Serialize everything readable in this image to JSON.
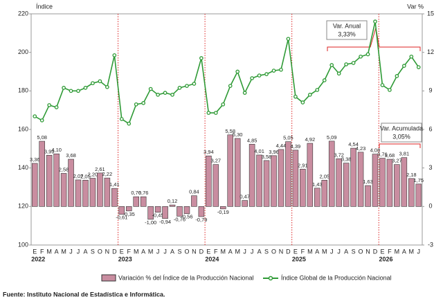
{
  "chart_data": {
    "type": "combo",
    "y_label": "Índice",
    "y2_label": "Var %",
    "categories": [
      "E",
      "F",
      "M",
      "A",
      "M",
      "J",
      "J",
      "A",
      "S",
      "O",
      "N",
      "D",
      "E",
      "F",
      "M",
      "A",
      "M",
      "J",
      "J",
      "A",
      "S",
      "O",
      "N",
      "D",
      "E",
      "F",
      "M",
      "A",
      "M",
      "J",
      "J",
      "A",
      "S",
      "O",
      "N",
      "D",
      "E",
      "F",
      "M",
      "A",
      "M",
      "J",
      "J",
      "A",
      "S",
      "O",
      "N",
      "D",
      "E",
      "F",
      "M",
      "A",
      "M",
      "J"
    ],
    "years": [
      "2022",
      "2023",
      "2024",
      "2025",
      "2026"
    ],
    "ylim": [
      100,
      220
    ],
    "yticks": [
      100,
      120,
      140,
      160,
      180,
      200,
      220
    ],
    "y2lim": [
      -3,
      15
    ],
    "y2ticks": [
      -3,
      0,
      3,
      6,
      9,
      12,
      15
    ],
    "series": [
      {
        "name": "Variación % del Índice de la Producción Nacional",
        "type": "bar",
        "axis": "y2",
        "color": "#c98da0",
        "values": [
          3.36,
          5.08,
          3.99,
          4.1,
          2.58,
          3.68,
          2.07,
          2.05,
          2.2,
          2.61,
          2.22,
          1.41,
          -0.61,
          -0.35,
          0.76,
          0.76,
          -1.0,
          -0.45,
          -0.94,
          0.12,
          -0.76,
          -0.56,
          0.84,
          -0.79,
          3.94,
          3.27,
          -0.19,
          5.58,
          5.3,
          0.47,
          4.85,
          4.01,
          3.58,
          3.96,
          4.44,
          5.05,
          4.39,
          2.91,
          4.92,
          1.43,
          2.05,
          5.09,
          3.72,
          3.38,
          4.54,
          4.23,
          1.63,
          4.08,
          3.76,
          3.68,
          3.27,
          3.81,
          2.18,
          1.75
        ],
        "value_labels": [
          "3,36",
          "5,08",
          "3,99",
          "4,10",
          "2,58",
          "3,68",
          "2,07",
          "2,05",
          "2,20",
          "2,61",
          "2,22",
          "1,41",
          "-0,61",
          "-0,35",
          "0,76",
          "0,76",
          "-1,00",
          "-0,45",
          "-0,94",
          "0,12",
          "-0,76",
          "-0,56",
          "0,84",
          "-0,79",
          "3,94",
          "3,27",
          "-0,19",
          "5,58",
          "5,30",
          "0,47",
          "4,85",
          "4,01",
          "3,58",
          "3,96",
          "4,44",
          "5,05",
          "4,39",
          "2,91",
          "4,92",
          "1,43",
          "2,05",
          "5,09",
          "3,72",
          "3,38",
          "4,54",
          "4,23",
          "1,63",
          "4,08",
          "3,76",
          "3,68",
          "3,27",
          "3,81",
          "2,18",
          "1,75"
        ]
      },
      {
        "name": "Índice Global de la Producción Nacional",
        "type": "line",
        "axis": "y",
        "color": "#2e9a35",
        "values": [
          166.8,
          164.7,
          172.6,
          171.5,
          181.6,
          180,
          180,
          181.6,
          184,
          185,
          182,
          198.5,
          165.4,
          163,
          173,
          173.7,
          181,
          178,
          179,
          178,
          181.6,
          182.6,
          183.7,
          197,
          168.6,
          168.6,
          173,
          182.6,
          190,
          179,
          186.6,
          188,
          188.7,
          190.5,
          191,
          207,
          177,
          174,
          178,
          180.5,
          185.5,
          193.4,
          189,
          193.8,
          194.5,
          197.8,
          199,
          216,
          183,
          180.5,
          187.7,
          193,
          197.8,
          192.3
        ]
      }
    ],
    "annotations": [
      {
        "title": "Var. Anual",
        "value": "3,33%"
      },
      {
        "title": "Var. Acumulada",
        "value": "3,05%"
      }
    ],
    "source": "Fuente: Instituto Nacional de Estadística e Informática."
  }
}
